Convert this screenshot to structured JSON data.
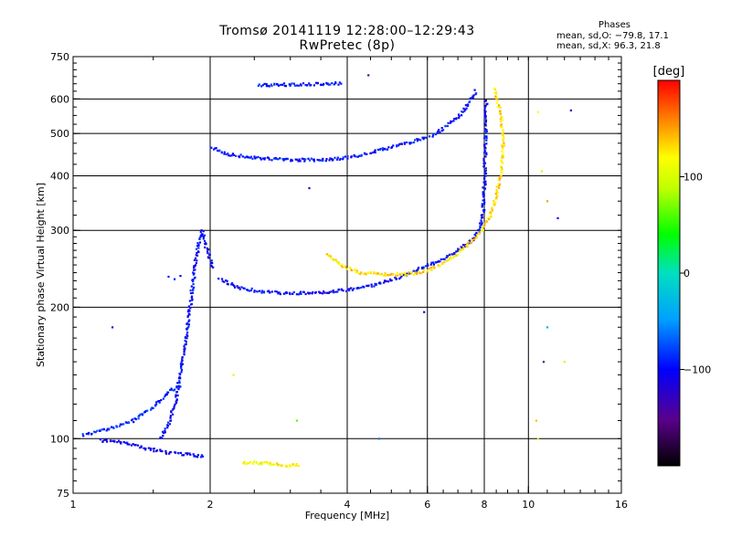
{
  "header": {
    "title_line1": "Tromsø 20141119 12:28:00–12:29:43",
    "title_line2": "RwPretec (8p)"
  },
  "phase_stats": {
    "title": "Phases",
    "o_label": "mean, sd,O: −79.8, 17.1",
    "x_label": "mean, sd,X:  96.3, 21.8"
  },
  "chart_data": {
    "type": "scatter",
    "xlabel": "Frequency [MHz]",
    "ylabel": "Stationary phase Virtual Height [km]",
    "xscale": "log",
    "yscale": "log",
    "xlim": [
      1,
      16
    ],
    "ylim": [
      75,
      750
    ],
    "x_ticks": [
      1,
      2,
      4,
      6,
      8,
      10,
      16
    ],
    "y_ticks": [
      75,
      100,
      200,
      300,
      400,
      500,
      600,
      750
    ],
    "x_gridlines": [
      2,
      4,
      6,
      8,
      10
    ],
    "y_gridlines": [
      100,
      200,
      300,
      400,
      500,
      600
    ],
    "grid": true,
    "colorbar": {
      "label": "[deg]",
      "range": [
        -200,
        200
      ],
      "ticks": [
        -100,
        0,
        100
      ]
    },
    "traces": [
      {
        "segments": [
          [
            [
              1.55,
              100
            ],
            [
              1.62,
              108
            ],
            [
              1.68,
              122
            ],
            [
              1.72,
              140
            ],
            [
              1.76,
              165
            ],
            [
              1.8,
              195
            ],
            [
              1.84,
              235
            ],
            [
              1.88,
              275
            ],
            [
              1.92,
              300
            ],
            [
              1.97,
              270
            ],
            [
              2.03,
              245
            ]
          ],
          [
            [
              2.1,
              232
            ],
            [
              2.3,
              222
            ],
            [
              2.6,
              217
            ],
            [
              3.0,
              215
            ],
            [
              3.5,
              216
            ],
            [
              4.0,
              219
            ],
            [
              4.5,
              224
            ],
            [
              5.0,
              231
            ],
            [
              5.5,
              240
            ],
            [
              6.0,
              249
            ],
            [
              6.5,
              258
            ],
            [
              7.0,
              270
            ],
            [
              7.5,
              285
            ],
            [
              7.8,
              300
            ],
            [
              7.95,
              330
            ],
            [
              8.02,
              400
            ],
            [
              8.05,
              500
            ],
            [
              8.07,
              600
            ]
          ]
        ],
        "phase": -100
      },
      {
        "segments": [
          [
            [
              2.0,
              465
            ],
            [
              2.2,
              448
            ],
            [
              2.5,
              440
            ],
            [
              3.0,
              435
            ],
            [
              3.5,
              435
            ],
            [
              4.0,
              440
            ],
            [
              4.5,
              452
            ],
            [
              5.0,
              465
            ],
            [
              5.5,
              478
            ],
            [
              6.0,
              492
            ]
          ],
          [
            [
              6.1,
              490
            ],
            [
              6.5,
              515
            ],
            [
              7.0,
              545
            ],
            [
              7.4,
              585
            ],
            [
              7.7,
              630
            ]
          ]
        ],
        "phase": -95
      },
      {
        "segments": [
          [
            [
              3.6,
              265
            ],
            [
              3.9,
              248
            ],
            [
              4.3,
              240
            ],
            [
              4.8,
              238
            ],
            [
              5.3,
              238
            ],
            [
              5.8,
              240
            ],
            [
              6.3,
              248
            ],
            [
              6.8,
              260
            ],
            [
              7.3,
              276
            ],
            [
              7.8,
              295
            ],
            [
              8.2,
              320
            ],
            [
              8.5,
              360
            ],
            [
              8.7,
              410
            ],
            [
              8.8,
              460
            ],
            [
              8.75,
              520
            ],
            [
              8.6,
              580
            ],
            [
              8.4,
              640
            ]
          ]
        ],
        "phase": 130
      },
      {
        "segments": [
          [
            [
              2.55,
              645
            ],
            [
              2.8,
              646
            ],
            [
              3.1,
              648
            ],
            [
              3.5,
              650
            ],
            [
              3.9,
              652
            ]
          ]
        ],
        "phase": -95
      },
      {
        "segments": [
          [
            [
              2.35,
              88
            ],
            [
              2.6,
              88
            ],
            [
              2.85,
              87
            ],
            [
              3.15,
              87
            ]
          ]
        ],
        "phase": 120
      },
      {
        "segments": [
          [
            [
              1.15,
              99
            ],
            [
              1.3,
              98
            ],
            [
              1.45,
              95
            ],
            [
              1.6,
              93
            ],
            [
              1.8,
              92
            ],
            [
              1.95,
              91
            ]
          ]
        ],
        "phase": -105
      },
      {
        "segments": [
          [
            [
              1.05,
              102
            ],
            [
              1.15,
              104
            ],
            [
              1.25,
              107
            ],
            [
              1.35,
              110
            ],
            [
              1.5,
              118
            ],
            [
              1.62,
              128
            ],
            [
              1.72,
              132
            ]
          ]
        ],
        "phase": -90
      }
    ],
    "extra_points": [
      [
        1.62,
        235,
        -90
      ],
      [
        1.67,
        232,
        -95
      ],
      [
        1.72,
        236,
        -100
      ],
      [
        1.22,
        180,
        -130
      ],
      [
        4.45,
        680,
        -150
      ],
      [
        3.3,
        375,
        -120
      ],
      [
        4.7,
        100,
        -60
      ],
      [
        5.9,
        195,
        -110
      ],
      [
        10.5,
        560,
        120
      ],
      [
        12.4,
        565,
        -120
      ],
      [
        10.7,
        410,
        90
      ],
      [
        11.0,
        350,
        150
      ],
      [
        11.6,
        320,
        -100
      ],
      [
        11.0,
        180,
        -40
      ],
      [
        10.8,
        150,
        -150
      ],
      [
        12.0,
        150,
        90
      ],
      [
        10.5,
        100,
        90
      ],
      [
        10.4,
        110,
        140
      ],
      [
        3.1,
        110,
        60
      ],
      [
        2.25,
        140,
        100
      ]
    ]
  }
}
